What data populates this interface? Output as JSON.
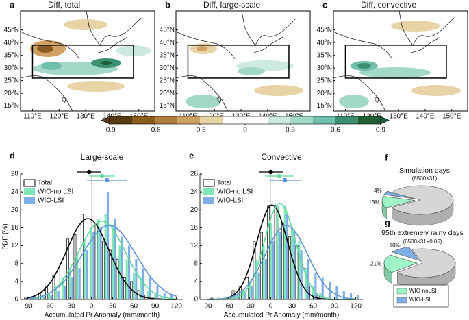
{
  "chart_data": [
    {
      "type": "map",
      "panel": "a",
      "title": "Diff, total",
      "xlim": [
        105.5,
        156
      ],
      "ylim": [
        13,
        52.5
      ],
      "xticks": [
        {
          "value": 110,
          "label": "110°E"
        },
        {
          "value": 120,
          "label": "120°E"
        },
        {
          "value": 130,
          "label": "130°E"
        },
        {
          "value": 140,
          "label": "140°E"
        },
        {
          "value": 150,
          "label": "150°E"
        }
      ],
      "yticks": [
        {
          "value": 15,
          "label": "15°N"
        },
        {
          "value": 20,
          "label": "20°N"
        },
        {
          "value": 25,
          "label": "25°N"
        },
        {
          "value": 30,
          "label": "30°N"
        },
        {
          "value": 35,
          "label": "35°N"
        },
        {
          "value": 40,
          "label": "40°N"
        },
        {
          "value": 45,
          "label": "45°N"
        }
      ],
      "region_lon": [
        110,
        148
      ],
      "region_lat": [
        26,
        39
      ]
    },
    {
      "type": "map",
      "panel": "b",
      "title": "Diff, large-scale",
      "xlim": [
        105.5,
        156
      ],
      "ylim": [
        13,
        52.5
      ],
      "xticks": [
        {
          "value": 110,
          "label": "110°E"
        },
        {
          "value": 120,
          "label": "120°E"
        },
        {
          "value": 130,
          "label": "130°E"
        },
        {
          "value": 140,
          "label": "140°E"
        },
        {
          "value": 150,
          "label": "150°E"
        }
      ],
      "yticks": [
        {
          "value": 15,
          "label": "15°N"
        },
        {
          "value": 20,
          "label": "20°N"
        },
        {
          "value": 25,
          "label": "25°N"
        },
        {
          "value": 30,
          "label": "30°N"
        },
        {
          "value": 35,
          "label": "35°N"
        },
        {
          "value": 40,
          "label": "40°N"
        },
        {
          "value": 45,
          "label": "45°N"
        }
      ],
      "region_lon": [
        110,
        148
      ],
      "region_lat": [
        26,
        39
      ]
    },
    {
      "type": "map",
      "panel": "c",
      "title": "Diff, convective",
      "xlim": [
        105.5,
        156
      ],
      "ylim": [
        13,
        52.5
      ],
      "xticks": [
        {
          "value": 110,
          "label": "110°E"
        },
        {
          "value": 120,
          "label": "120°E"
        },
        {
          "value": 130,
          "label": "130°E"
        },
        {
          "value": 140,
          "label": "140°E"
        },
        {
          "value": 150,
          "label": "150°E"
        }
      ],
      "yticks": [
        {
          "value": 15,
          "label": "15°N"
        },
        {
          "value": 20,
          "label": "20°N"
        },
        {
          "value": 25,
          "label": "25°N"
        },
        {
          "value": 30,
          "label": "30°N"
        },
        {
          "value": 35,
          "label": "35°N"
        },
        {
          "value": 40,
          "label": "40°N"
        },
        {
          "value": 45,
          "label": "45°N"
        }
      ],
      "region_lon": [
        110,
        148
      ],
      "region_lat": [
        26,
        39
      ]
    },
    {
      "type": "colorbar",
      "lim": [
        -0.9,
        0.9
      ],
      "ticks": [
        -0.9,
        -0.6,
        -0.3,
        0,
        0.3,
        0.6,
        0.9
      ],
      "colors": [
        "#5a3a10",
        "#8a5c22",
        "#b07e40",
        "#cfa263",
        "#e8d3a6",
        "#ffffff",
        "#ffffff",
        "#cdeae0",
        "#a3d8c8",
        "#6fbfaa",
        "#3d8f72",
        "#1e5e35"
      ]
    },
    {
      "type": "bar",
      "panel": "d",
      "title": "Large-scale",
      "xlabel": "Accumulated Pr Anomaly (mm/month)",
      "ylabel": "PDF (%)",
      "xlim": [
        -100,
        130
      ],
      "ylim": [
        0,
        28
      ],
      "xticks": [
        -90,
        -60,
        -30,
        0,
        30,
        60,
        90,
        120
      ],
      "yticks": [
        0,
        4,
        8,
        12,
        16,
        20,
        24,
        28
      ],
      "x": [
        -90,
        -80,
        -70,
        -60,
        -50,
        -40,
        -30,
        -20,
        -10,
        0,
        10,
        20,
        30,
        40,
        50,
        60,
        70,
        80,
        90,
        100,
        110,
        120
      ],
      "series": [
        {
          "name": "Total",
          "color": "#000000",
          "values": [
            0.3,
            0.5,
            1.5,
            3,
            5.5,
            8,
            13.5,
            14.5,
            19,
            18,
            17,
            13,
            11,
            9,
            5,
            4,
            2,
            1,
            0.3,
            0.2,
            0,
            0
          ],
          "fit": [
            0.33,
            0.79,
            1.72,
            3.35,
            5.84,
            9.1,
            12.7,
            15.9,
            17.8,
            17.8,
            15.9,
            12.7,
            9.1,
            5.84,
            3.35,
            1.72,
            0.79,
            0.33,
            0.12,
            0.04,
            0.01,
            0
          ],
          "mean": -3,
          "mean_error": 17
        },
        {
          "name": "WIO-no LSI",
          "color": "#7fe8b8",
          "values": [
            0,
            0.2,
            0.5,
            1.5,
            3,
            5,
            7,
            10,
            13,
            16,
            18,
            19,
            16,
            12,
            9,
            6,
            5,
            2,
            1,
            0.5,
            0.3,
            0
          ],
          "fit": [
            0.1,
            0.28,
            0.63,
            1.3,
            2.5,
            4.4,
            6.9,
            10,
            13.1,
            15.8,
            17.3,
            17.3,
            15.8,
            13.1,
            10,
            6.9,
            4.4,
            2.5,
            1.3,
            0.63,
            0.28,
            0.1
          ],
          "mean": 15,
          "mean_error": 18
        },
        {
          "name": "WIO-LSI",
          "color": "#7faee6",
          "values": [
            0,
            0.3,
            0.5,
            1,
            2,
            3,
            5,
            7,
            11,
            15,
            16,
            24,
            18,
            14,
            12,
            9,
            7,
            5,
            3,
            1.5,
            1,
            0
          ],
          "fit": [
            0.17,
            0.36,
            0.72,
            1.35,
            2.35,
            3.8,
            5.8,
            8.2,
            10.8,
            13.3,
            15.3,
            16.4,
            16.4,
            15.3,
            13.3,
            10.8,
            8.2,
            5.8,
            3.8,
            2.35,
            1.35,
            0.72
          ],
          "mean": 22,
          "mean_error": 28
        }
      ]
    },
    {
      "type": "bar",
      "panel": "e",
      "title": "Convective",
      "xlabel": "Accumulated Pr Anomaly (mm/month)",
      "xlim": [
        -100,
        130
      ],
      "ylim": [
        0,
        28
      ],
      "xticks": [
        -90,
        -60,
        -30,
        0,
        30,
        60,
        90,
        120
      ],
      "yticks": [
        0,
        4,
        8,
        12,
        16,
        20,
        24,
        28
      ],
      "x": [
        -90,
        -80,
        -70,
        -60,
        -50,
        -40,
        -30,
        -20,
        -10,
        0,
        10,
        20,
        30,
        40,
        50,
        60,
        70,
        80,
        90,
        100,
        110,
        120
      ],
      "series": [
        {
          "name": "Total",
          "color": "#000000",
          "values": [
            0,
            0.3,
            0.5,
            1,
            2,
            3,
            5,
            13,
            15,
            21,
            21,
            17,
            14,
            12,
            7,
            3,
            1,
            0.3,
            0,
            0,
            0,
            0
          ],
          "fit": [
            0,
            0.02,
            0.1,
            0.4,
            1.3,
            3.4,
            7.3,
            12.7,
            18.1,
            21,
            19.7,
            15,
            9.3,
            4.7,
            1.9,
            0.65,
            0.18,
            0.04,
            0,
            0,
            0,
            0
          ],
          "mean": 0,
          "mean_error": 17
        },
        {
          "name": "WIO-no LSI",
          "color": "#7fe8b8",
          "values": [
            0,
            0,
            0,
            0.5,
            1,
            2,
            4,
            9,
            12,
            17,
            21,
            21,
            16,
            13,
            7,
            3,
            1.5,
            0.5,
            0,
            0,
            0,
            0
          ],
          "fit": [
            0,
            0,
            0,
            0.1,
            0.36,
            1.2,
            3.2,
            7,
            12.4,
            18.1,
            21.3,
            20.4,
            15.9,
            10.1,
            5.2,
            2.2,
            0.75,
            0.2,
            0.05,
            0,
            0,
            0
          ],
          "mean": 12,
          "mean_error": 20
        },
        {
          "name": "WIO-LSI",
          "color": "#7faee6",
          "values": [
            0,
            0,
            0.3,
            0.5,
            1,
            2,
            3,
            6,
            9,
            13,
            15,
            19,
            15,
            11,
            9,
            6,
            5,
            4,
            3,
            2,
            1.5,
            1
          ],
          "fit": [
            0,
            0.05,
            0.15,
            0.4,
            0.93,
            1.9,
            3.7,
            6.2,
            9.3,
            12.6,
            15.2,
            16.5,
            15.9,
            13.8,
            10.7,
            7.4,
            4.6,
            2.5,
            1.3,
            0.56,
            0.22,
            0.08
          ],
          "mean": 20,
          "mean_error": 22
        }
      ]
    },
    {
      "type": "pie",
      "panel": "f",
      "title": "Simulation days",
      "subtitle": "(6500×31)",
      "values": [
        13,
        4,
        83
      ],
      "value_labels": [
        "13%",
        "4%",
        null
      ],
      "colors": [
        "#9ff5c8",
        "#7faee6",
        "#d6d6d6"
      ]
    },
    {
      "type": "pie",
      "panel": "g",
      "title": "95th extremely rainy days",
      "subtitle": "(6500×31×0.05)",
      "values": [
        21,
        10,
        69
      ],
      "value_labels": [
        "21%",
        "10%",
        null
      ],
      "colors": [
        "#9ff5c8",
        "#7faee6",
        "#d6d6d6"
      ],
      "categories": [
        "WIO-noLSI",
        "WIO-LSI",
        null
      ]
    }
  ]
}
